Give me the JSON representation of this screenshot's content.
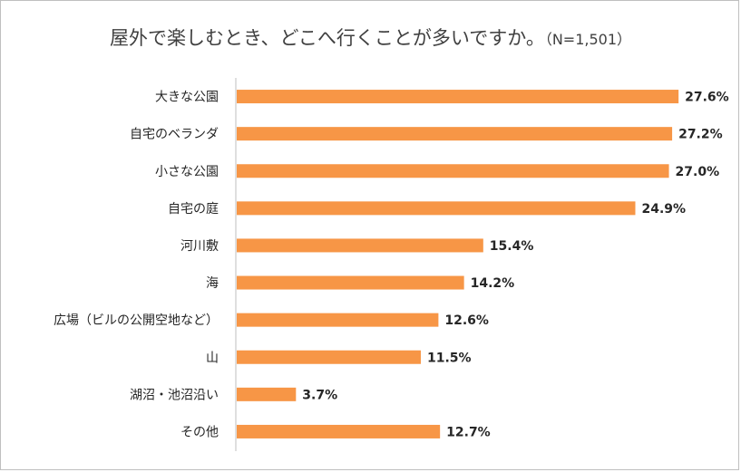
{
  "chart_data": {
    "type": "bar",
    "orientation": "horizontal",
    "title": "屋外で楽しむとき、どこへ行くことが多いですか。",
    "subtitle": "（N=1,501）",
    "categories": [
      "大きな公園",
      "自宅のベランダ",
      "小さな公園",
      "自宅の庭",
      "河川敷",
      "海",
      "広場（ビルの公開空地など）",
      "山",
      "湖沼・池沼沿い",
      "その他"
    ],
    "values": [
      27.6,
      27.2,
      27.0,
      24.9,
      15.4,
      14.2,
      12.6,
      11.5,
      3.7,
      12.7
    ],
    "value_labels": [
      "27.6%",
      "27.2%",
      "27.0%",
      "24.9%",
      "15.4%",
      "14.2%",
      "12.6%",
      "11.5%",
      "3.7%",
      "12.7%"
    ],
    "xlim": [
      0,
      30
    ],
    "bar_color": "#f79646",
    "axis_color": "#bfbfbf",
    "grid": false,
    "legend": "none"
  }
}
